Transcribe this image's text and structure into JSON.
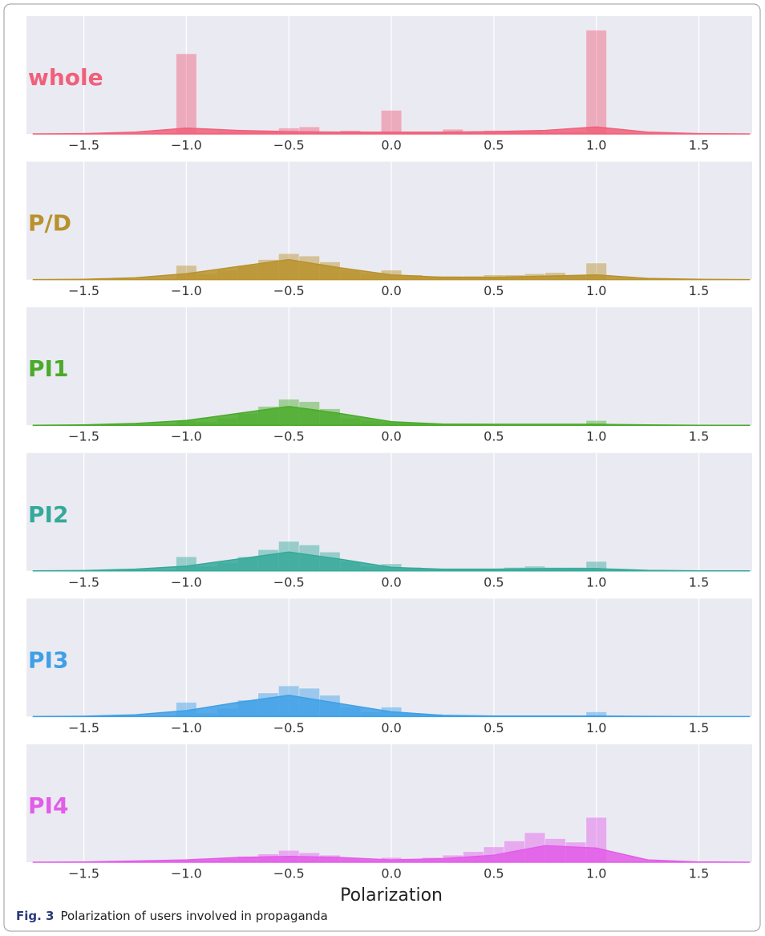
{
  "chart_data": [
    {
      "type": "histogram",
      "title": "whole",
      "color": "#f0607a",
      "bins": [
        -1.05,
        -0.95,
        -0.85,
        -0.75,
        -0.65,
        -0.55,
        -0.45,
        -0.35,
        -0.25,
        -0.15,
        -0.05,
        0.05,
        0.15,
        0.25,
        0.35,
        0.45,
        0.55,
        0.65,
        0.75,
        0.85,
        0.95,
        1.05
      ],
      "values": [
        68,
        1,
        2,
        2,
        3,
        5,
        6,
        2,
        3,
        2,
        20,
        2,
        2,
        4,
        2,
        3,
        2,
        2,
        2,
        2,
        88
      ],
      "kde_x": [
        -1.75,
        -1.5,
        -1.25,
        -1,
        -0.75,
        -0.5,
        -0.25,
        0,
        0.25,
        0.5,
        0.75,
        1,
        1.25,
        1.5,
        1.75
      ],
      "kde_values": [
        0,
        0.3,
        1.5,
        5,
        3,
        2,
        1.5,
        1.5,
        1.5,
        2,
        3,
        6,
        1.5,
        0.3,
        0
      ],
      "xlim": [
        -1.78,
        1.76
      ],
      "ylim": [
        0,
        100
      ],
      "grid": true,
      "xticks": [
        {
          "value": -1.5,
          "label": "−1.5"
        },
        {
          "value": -1,
          "label": "−1.0"
        },
        {
          "value": -0.5,
          "label": "−0.5"
        },
        {
          "value": 0,
          "label": "0.0"
        },
        0.5,
        {
          "value": 1,
          "label": "1.0"
        },
        1.5
      ]
    },
    {
      "type": "histogram",
      "title": "P/D",
      "color": "#b8922c",
      "bins": [
        -1.05,
        -0.95,
        -0.85,
        -0.75,
        -0.65,
        -0.55,
        -0.45,
        -0.35,
        -0.25,
        -0.15,
        -0.05,
        0.05,
        0.15,
        0.25,
        0.35,
        0.45,
        0.55,
        0.65,
        0.75,
        0.85,
        0.95,
        1.05
      ],
      "values": [
        12,
        5,
        8,
        12,
        17,
        22,
        20,
        15,
        8,
        5,
        8,
        4,
        3,
        3,
        3,
        4,
        4,
        5,
        6,
        4,
        14
      ],
      "kde_x": [
        -1.75,
        -1.5,
        -1.25,
        -1,
        -0.75,
        -0.5,
        -0.25,
        0,
        0.25,
        0.5,
        0.75,
        1,
        1.25,
        1.5,
        1.75
      ],
      "kde_values": [
        0,
        0.3,
        1.5,
        5,
        11,
        17,
        10,
        4,
        2,
        2,
        3,
        4,
        1,
        0.2,
        0
      ],
      "xlim": [
        -1.78,
        1.76
      ],
      "ylim": [
        0,
        100
      ],
      "grid": true,
      "xticks": [
        {
          "value": -1.5,
          "label": "−1.5"
        },
        {
          "value": -1,
          "label": "−1.0"
        },
        {
          "value": -0.5,
          "label": "−0.5"
        },
        {
          "value": 0,
          "label": "0.0"
        },
        0.5,
        {
          "value": 1,
          "label": "1.0"
        },
        1.5
      ]
    },
    {
      "type": "histogram",
      "title": "PI1",
      "color": "#4aab2a",
      "bins": [
        -1.05,
        -0.95,
        -0.85,
        -0.75,
        -0.65,
        -0.55,
        -0.45,
        -0.35,
        -0.25,
        -0.15,
        -0.05,
        0.05,
        0.15,
        0.25,
        0.35,
        0.45,
        0.55,
        0.65,
        0.75,
        0.85,
        0.95,
        1.05
      ],
      "values": [
        4,
        3,
        6,
        10,
        16,
        22,
        20,
        14,
        6,
        4,
        3,
        2,
        1.5,
        1,
        1,
        1,
        1,
        1,
        1,
        1,
        4
      ],
      "kde_x": [
        -1.75,
        -1.5,
        -1.25,
        -1,
        -0.75,
        -0.5,
        -0.25,
        0,
        0.25,
        0.5,
        0.75,
        1,
        1.25,
        1.5,
        1.75
      ],
      "kde_values": [
        0,
        0.3,
        1.5,
        4,
        10,
        16,
        10,
        3,
        1,
        0.8,
        0.8,
        0.8,
        0.3,
        0,
        0
      ],
      "xlim": [
        -1.78,
        1.76
      ],
      "ylim": [
        0,
        100
      ],
      "grid": true,
      "xticks": [
        {
          "value": -1.5,
          "label": "−1.5"
        },
        {
          "value": -1,
          "label": "−1.0"
        },
        {
          "value": -0.5,
          "label": "−0.5"
        },
        {
          "value": 0,
          "label": "0.0"
        },
        0.5,
        {
          "value": 1,
          "label": "1.0"
        },
        1.5
      ]
    },
    {
      "type": "histogram",
      "title": "PI2",
      "color": "#35a99a",
      "bins": [
        -1.05,
        -0.95,
        -0.85,
        -0.75,
        -0.65,
        -0.55,
        -0.45,
        -0.35,
        -0.25,
        -0.15,
        -0.05,
        0.05,
        0.15,
        0.25,
        0.35,
        0.45,
        0.55,
        0.65,
        0.75,
        0.85,
        0.95,
        1.05
      ],
      "values": [
        12,
        4,
        7,
        12,
        18,
        25,
        22,
        16,
        8,
        4,
        6,
        3,
        2,
        2,
        2,
        2,
        3,
        4,
        3,
        3,
        8
      ],
      "kde_x": [
        -1.75,
        -1.5,
        -1.25,
        -1,
        -0.75,
        -0.5,
        -0.25,
        0,
        0.25,
        0.5,
        0.75,
        1,
        1.25,
        1.5,
        1.75
      ],
      "kde_values": [
        0,
        0.3,
        1.5,
        4,
        10,
        16,
        10,
        3,
        1.5,
        1.5,
        2,
        2,
        0.5,
        0.1,
        0
      ],
      "xlim": [
        -1.78,
        1.76
      ],
      "ylim": [
        0,
        100
      ],
      "grid": true,
      "xticks": [
        {
          "value": -1.5,
          "label": "−1.5"
        },
        {
          "value": -1,
          "label": "−1.0"
        },
        {
          "value": -0.5,
          "label": "−0.5"
        },
        {
          "value": 0,
          "label": "0.0"
        },
        0.5,
        {
          "value": 1,
          "label": "1.0"
        },
        1.5
      ]
    },
    {
      "type": "histogram",
      "title": "PI3",
      "color": "#3ea0e6",
      "bins": [
        -1.05,
        -0.95,
        -0.85,
        -0.75,
        -0.65,
        -0.55,
        -0.45,
        -0.35,
        -0.25,
        -0.15,
        -0.05,
        0.05,
        0.15,
        0.25,
        0.35,
        0.45,
        0.55,
        0.65,
        0.75,
        0.85,
        0.95,
        1.05
      ],
      "values": [
        12,
        3,
        7,
        14,
        20,
        26,
        24,
        18,
        8,
        4,
        8,
        3,
        2,
        1,
        1,
        1,
        1,
        1,
        1,
        1,
        4
      ],
      "kde_x": [
        -1.75,
        -1.5,
        -1.25,
        -1,
        -0.75,
        -0.5,
        -0.25,
        0,
        0.25,
        0.5,
        0.75,
        1,
        1.25,
        1.5,
        1.75
      ],
      "kde_values": [
        0,
        0.3,
        1.5,
        5,
        12,
        18,
        11,
        4,
        1,
        0.5,
        0.5,
        0.5,
        0.2,
        0,
        0
      ],
      "xlim": [
        -1.78,
        1.76
      ],
      "ylim": [
        0,
        100
      ],
      "grid": true,
      "xticks": [
        {
          "value": -1.5,
          "label": "−1.5"
        },
        {
          "value": -1,
          "label": "−1.0"
        },
        {
          "value": -0.5,
          "label": "−0.5"
        },
        {
          "value": 0,
          "label": "0.0"
        },
        0.5,
        {
          "value": 1,
          "label": "1.0"
        },
        1.5
      ]
    },
    {
      "type": "histogram",
      "title": "PI4",
      "color": "#e25de8",
      "bins": [
        -1.05,
        -0.95,
        -0.85,
        -0.75,
        -0.65,
        -0.55,
        -0.45,
        -0.35,
        -0.25,
        -0.15,
        -0.05,
        0.05,
        0.15,
        0.25,
        0.35,
        0.45,
        0.55,
        0.65,
        0.75,
        0.85,
        0.95,
        1.05
      ],
      "values": [
        2,
        2,
        3,
        5,
        7,
        10,
        8,
        6,
        4,
        2,
        4,
        3,
        4,
        6,
        9,
        13,
        18,
        25,
        20,
        17,
        38
      ],
      "kde_x": [
        -1.75,
        -1.5,
        -1.25,
        -1,
        -0.75,
        -0.5,
        -0.25,
        0,
        0.25,
        0.5,
        0.75,
        1,
        1.25,
        1.5,
        1.75
      ],
      "kde_values": [
        0,
        0.2,
        1,
        2,
        4,
        5,
        4,
        2,
        3,
        6,
        14,
        12,
        2,
        0.2,
        0
      ],
      "xlim": [
        -1.78,
        1.76
      ],
      "ylim": [
        0,
        100
      ],
      "grid": true,
      "xlabel": "Polarization",
      "xticks": [
        {
          "value": -1.5,
          "label": "−1.5"
        },
        {
          "value": -1,
          "label": "−1.0"
        },
        {
          "value": -0.5,
          "label": "−0.5"
        },
        {
          "value": 0,
          "label": "0.0"
        },
        0.5,
        {
          "value": 1,
          "label": "1.0"
        },
        1.5
      ]
    }
  ],
  "caption": {
    "label": "Fig. 3",
    "text": "Polarization of users involved in propaganda"
  }
}
